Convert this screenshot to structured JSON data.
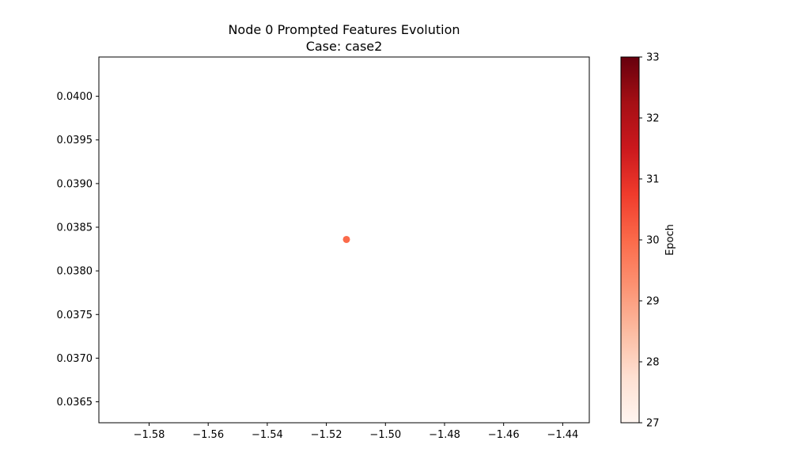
{
  "chart_data": {
    "type": "scatter",
    "title": "Node 0 Prompted Features Evolution",
    "subtitle": "Case: case2",
    "xlabel": "",
    "ylabel": "",
    "xlim": [
      -1.597,
      -1.431
    ],
    "ylim": [
      0.03626,
      0.04045
    ],
    "xticks": [
      -1.58,
      -1.56,
      -1.54,
      -1.52,
      -1.5,
      -1.48,
      -1.46,
      -1.44
    ],
    "xtick_labels": [
      "−1.58",
      "−1.56",
      "−1.54",
      "−1.52",
      "−1.50",
      "−1.48",
      "−1.46",
      "−1.44"
    ],
    "yticks": [
      0.0365,
      0.037,
      0.0375,
      0.038,
      0.0385,
      0.039,
      0.0395,
      0.04
    ],
    "ytick_labels": [
      "0.0365",
      "0.0370",
      "0.0375",
      "0.0380",
      "0.0385",
      "0.0390",
      "0.0395",
      "0.0400"
    ],
    "points": [
      {
        "x": -1.5132,
        "y": 0.03836,
        "epoch": 30
      }
    ],
    "grid": false,
    "colorbar": {
      "label": "Epoch",
      "colormap": "Reds",
      "min": 27,
      "max": 33,
      "ticks": [
        27,
        28,
        29,
        30,
        31,
        32,
        33
      ],
      "tick_labels": [
        "27",
        "28",
        "29",
        "30",
        "31",
        "32",
        "33"
      ],
      "gradient_stops": [
        "#fff5f0",
        "#fee0d2",
        "#fcbba1",
        "#fc9272",
        "#fb6a4a",
        "#ef3b2c",
        "#cb181d",
        "#a50f15",
        "#67000d"
      ]
    }
  }
}
